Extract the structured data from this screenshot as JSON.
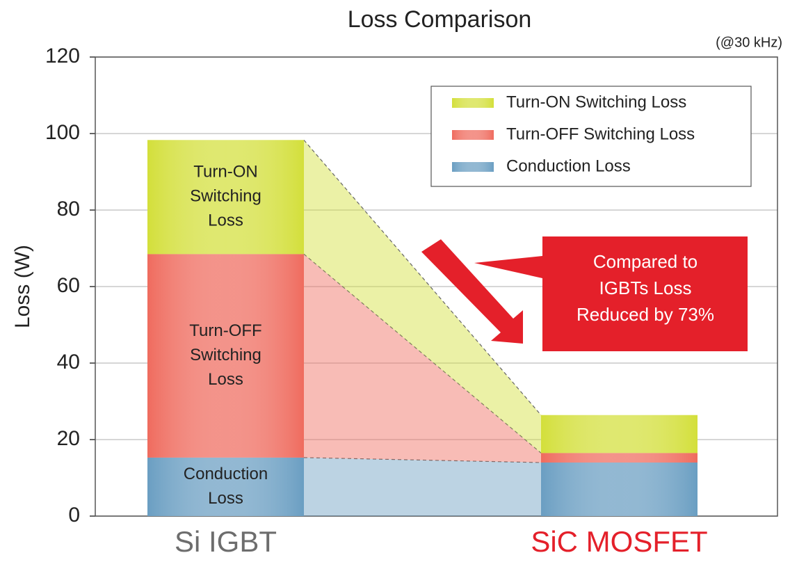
{
  "chart_data": {
    "type": "stacked_bar",
    "title": "Loss Comparison",
    "subtitle": "(@30 kHz)",
    "y_label": "Loss (W)",
    "categories": [
      "Si IGBT",
      "SiC MOSFET"
    ],
    "category_colors": [
      "#6d6d6d",
      "#e4202a"
    ],
    "series": [
      {
        "name": "Conduction Loss",
        "color": "#6a9ec2",
        "values": [
          15.3,
          14.0
        ],
        "label_lines": [
          "Conduction",
          "Loss"
        ]
      },
      {
        "name": "Turn-OFF Switching Loss",
        "color": "#ef6b5e",
        "values": [
          53.2,
          2.5
        ],
        "label_lines": [
          "Turn-OFF",
          "Switching",
          "Loss"
        ]
      },
      {
        "name": "Turn-ON Switching Loss",
        "color": "#d3df3a",
        "values": [
          29.8,
          9.9
        ],
        "label_lines": [
          "Turn-ON",
          "Switching",
          "Loss"
        ]
      }
    ],
    "ylim": [
      0,
      120
    ],
    "yticks": [
      0,
      20,
      40,
      60,
      80,
      100,
      120
    ],
    "grid": true,
    "annotation": [
      "Compared to",
      "IGBTs Loss",
      "Reduced by 73%"
    ],
    "annotation_color": "#e4202a"
  }
}
